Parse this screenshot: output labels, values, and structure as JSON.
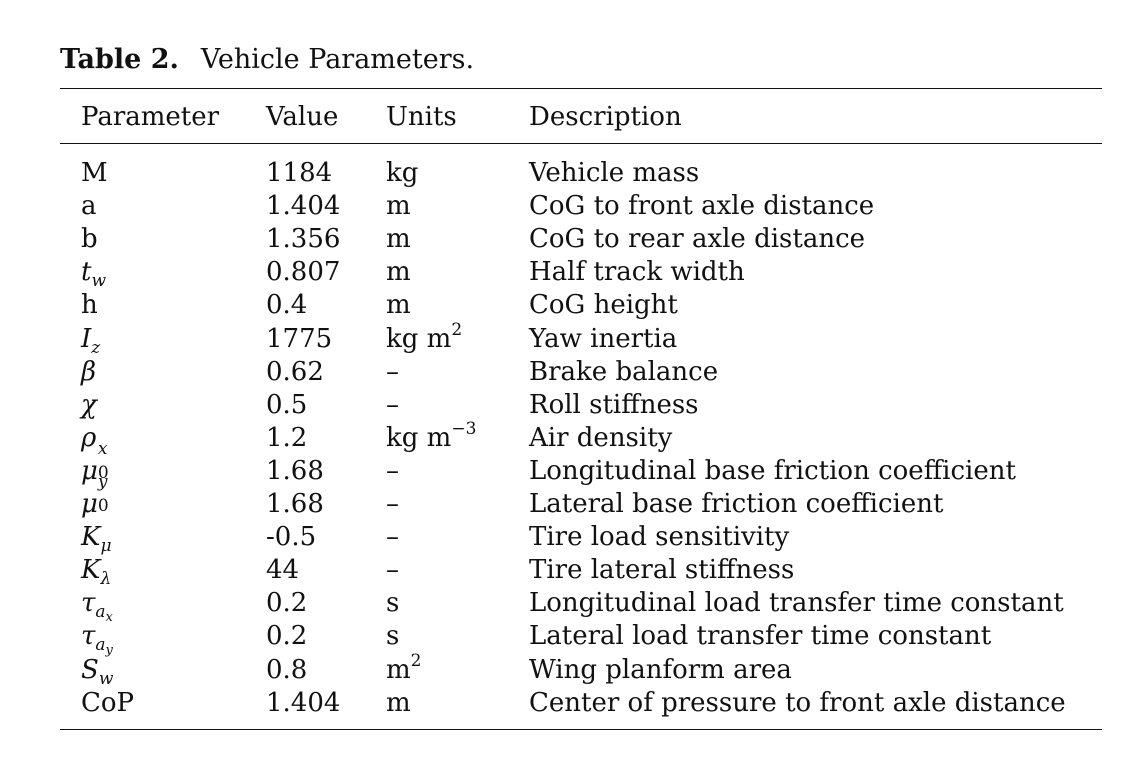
{
  "caption": {
    "label": "Table 2.",
    "title": "Vehicle Parameters."
  },
  "headers": [
    "Parameter",
    "Value",
    "Units",
    "Description"
  ],
  "rows": [
    {
      "param": "M",
      "value": "1184",
      "units": "kg",
      "desc": "Vehicle mass"
    },
    {
      "param": "a",
      "value": "1.404",
      "units": "m",
      "desc": "CoG to front axle distance"
    },
    {
      "param": "b",
      "value": "1.356",
      "units": "m",
      "desc": "CoG to rear axle distance"
    },
    {
      "param": "t",
      "param_sub": "w",
      "value": "0.807",
      "units": "m",
      "desc": "Half track width"
    },
    {
      "param": "h",
      "value": "0.4",
      "units": "m",
      "desc": "CoG height"
    },
    {
      "param": "I",
      "param_sub": "z",
      "value": "1775",
      "units": "kg m",
      "units_sup": "2",
      "desc": "Yaw inertia"
    },
    {
      "param": "β",
      "value": "0.62",
      "units": "–",
      "desc": "Brake balance"
    },
    {
      "param": "χ",
      "value": "0.5",
      "units": "–",
      "desc": "Roll stiffness"
    },
    {
      "param": "ρ",
      "value": "1.2",
      "units": "kg m",
      "units_sup": "−3",
      "desc": "Air density"
    },
    {
      "param": "μ",
      "param_sup": "x",
      "param_sub": "0",
      "value": "1.68",
      "units": "–",
      "desc": "Longitudinal base friction coefficient"
    },
    {
      "param": "μ",
      "param_sup": "y",
      "param_sub": "0",
      "value": "1.68",
      "units": "–",
      "desc": "Lateral base friction coefficient"
    },
    {
      "param": "K",
      "param_sub": "μ",
      "value": "-0.5",
      "units": "–",
      "desc": "Tire load sensitivity"
    },
    {
      "param": "K",
      "param_sub": "λ",
      "value": "44",
      "units": "–",
      "desc": "Tire lateral stiffness"
    },
    {
      "param": "τ",
      "param_sub": "a",
      "param_subsub": "x",
      "value": "0.2",
      "units": "s",
      "desc": "Longitudinal load transfer time constant"
    },
    {
      "param": "τ",
      "param_sub": "a",
      "param_subsub": "y",
      "value": "0.2",
      "units": "s",
      "desc": "Lateral load transfer time constant"
    },
    {
      "param": "S",
      "param_sub": "w",
      "value": "0.8",
      "units": "m",
      "units_sup": "2",
      "desc": "Wing planform area"
    },
    {
      "param": "CoP",
      "value": "1.404",
      "units": "m",
      "desc": "Center of pressure to front axle distance"
    }
  ]
}
